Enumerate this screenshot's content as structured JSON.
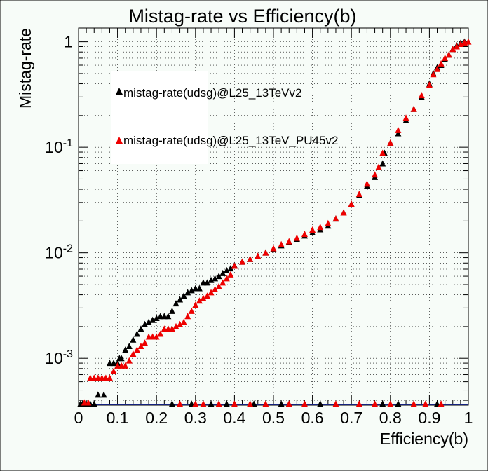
{
  "chart_data": {
    "type": "scatter",
    "title": "Mistag-rate vs Efficiency(b)",
    "xlabel": "Efficiency(b)",
    "ylabel": "Mistag-rate",
    "xlim": [
      0,
      1
    ],
    "ylim": [
      0.00036,
      1.35
    ],
    "yscale": "log",
    "grid": true,
    "legend_position": "top-left",
    "x_ticks": [
      "0",
      "0.1",
      "0.2",
      "0.3",
      "0.4",
      "0.5",
      "0.6",
      "0.7",
      "0.8",
      "0.9",
      "1"
    ],
    "y_ticks": [
      {
        "base": "10",
        "exp": "-3",
        "value": 0.001
      },
      {
        "base": "10",
        "exp": "-2",
        "value": 0.01
      },
      {
        "base": "10",
        "exp": "-1",
        "value": 0.1
      },
      {
        "base": "1",
        "exp": "",
        "value": 1
      }
    ],
    "series": [
      {
        "name": "mistag-rate(udsg)@L25_13TeVv2",
        "color": "#000000",
        "marker": "triangle",
        "points": [
          [
            0.005,
            0.00037
          ],
          [
            0.01,
            0.00037
          ],
          [
            0.02,
            0.00037
          ],
          [
            0.03,
            0.00037
          ],
          [
            0.04,
            0.00037
          ],
          [
            0.05,
            0.00045
          ],
          [
            0.065,
            0.00045
          ],
          [
            0.08,
            0.0009
          ],
          [
            0.09,
            0.0009
          ],
          [
            0.1,
            0.0009
          ],
          [
            0.105,
            0.001
          ],
          [
            0.11,
            0.001
          ],
          [
            0.12,
            0.0012
          ],
          [
            0.13,
            0.0013
          ],
          [
            0.14,
            0.0015
          ],
          [
            0.15,
            0.0017
          ],
          [
            0.16,
            0.0019
          ],
          [
            0.17,
            0.0021
          ],
          [
            0.18,
            0.0022
          ],
          [
            0.19,
            0.0023
          ],
          [
            0.2,
            0.0024
          ],
          [
            0.21,
            0.0025
          ],
          [
            0.22,
            0.0025
          ],
          [
            0.23,
            0.0025
          ],
          [
            0.24,
            0.0028
          ],
          [
            0.25,
            0.0033
          ],
          [
            0.26,
            0.0036
          ],
          [
            0.27,
            0.0039
          ],
          [
            0.28,
            0.0042
          ],
          [
            0.29,
            0.0044
          ],
          [
            0.3,
            0.0046
          ],
          [
            0.31,
            0.0046
          ],
          [
            0.32,
            0.0052
          ],
          [
            0.33,
            0.0052
          ],
          [
            0.34,
            0.0055
          ],
          [
            0.35,
            0.0057
          ],
          [
            0.36,
            0.006
          ],
          [
            0.37,
            0.0064
          ],
          [
            0.38,
            0.0068
          ],
          [
            0.39,
            0.0071
          ],
          [
            0.4,
            0.0076
          ],
          [
            0.42,
            0.0082
          ],
          [
            0.44,
            0.0087
          ],
          [
            0.46,
            0.0093
          ],
          [
            0.48,
            0.01
          ],
          [
            0.5,
            0.0108
          ],
          [
            0.52,
            0.0117
          ],
          [
            0.54,
            0.0126
          ],
          [
            0.56,
            0.0135
          ],
          [
            0.58,
            0.0145
          ],
          [
            0.6,
            0.0155
          ],
          [
            0.62,
            0.0166
          ],
          [
            0.64,
            0.018
          ],
          [
            0.66,
            0.021
          ],
          [
            0.68,
            0.024
          ],
          [
            0.7,
            0.029
          ],
          [
            0.72,
            0.035
          ],
          [
            0.74,
            0.043
          ],
          [
            0.76,
            0.052
          ],
          [
            0.78,
            0.07
          ],
          [
            0.785,
            0.088
          ],
          [
            0.8,
            0.11
          ],
          [
            0.82,
            0.135
          ],
          [
            0.84,
            0.18
          ],
          [
            0.86,
            0.23
          ],
          [
            0.88,
            0.3
          ],
          [
            0.9,
            0.4
          ],
          [
            0.91,
            0.5
          ],
          [
            0.92,
            0.57
          ],
          [
            0.93,
            0.6
          ],
          [
            0.94,
            0.68
          ],
          [
            0.95,
            0.75
          ],
          [
            0.96,
            0.85
          ],
          [
            0.97,
            0.92
          ],
          [
            0.98,
            0.97
          ],
          [
            0.99,
            1.0
          ],
          [
            0.24,
            0.00037
          ],
          [
            0.29,
            0.00037
          ],
          [
            0.34,
            0.00037
          ],
          [
            0.38,
            0.00037
          ],
          [
            0.45,
            0.00037
          ],
          [
            0.52,
            0.00037
          ],
          [
            0.54,
            0.00037
          ],
          [
            0.62,
            0.00037
          ],
          [
            0.78,
            0.00037
          ],
          [
            0.82,
            0.00037
          ],
          [
            0.92,
            0.00037
          ]
        ]
      },
      {
        "name": "mistag-rate(udsg)@L25_13TeV_PU45v2",
        "color": "#ee0000",
        "marker": "triangle",
        "points": [
          [
            0.015,
            0.00038
          ],
          [
            0.025,
            0.00038
          ],
          [
            0.03,
            0.00065
          ],
          [
            0.04,
            0.00065
          ],
          [
            0.05,
            0.00065
          ],
          [
            0.06,
            0.00065
          ],
          [
            0.07,
            0.00065
          ],
          [
            0.08,
            0.00065
          ],
          [
            0.09,
            0.00075
          ],
          [
            0.1,
            0.00085
          ],
          [
            0.11,
            0.00085
          ],
          [
            0.12,
            0.00085
          ],
          [
            0.13,
            0.00095
          ],
          [
            0.14,
            0.0011
          ],
          [
            0.15,
            0.0012
          ],
          [
            0.16,
            0.0013
          ],
          [
            0.17,
            0.0014
          ],
          [
            0.18,
            0.0016
          ],
          [
            0.19,
            0.0016
          ],
          [
            0.2,
            0.0016
          ],
          [
            0.21,
            0.0017
          ],
          [
            0.22,
            0.0019
          ],
          [
            0.23,
            0.0019
          ],
          [
            0.24,
            0.0019
          ],
          [
            0.25,
            0.002
          ],
          [
            0.26,
            0.0021
          ],
          [
            0.27,
            0.0022
          ],
          [
            0.28,
            0.0025
          ],
          [
            0.29,
            0.0028
          ],
          [
            0.3,
            0.0032
          ],
          [
            0.31,
            0.0035
          ],
          [
            0.32,
            0.0037
          ],
          [
            0.33,
            0.0039
          ],
          [
            0.34,
            0.0042
          ],
          [
            0.35,
            0.0045
          ],
          [
            0.36,
            0.0048
          ],
          [
            0.37,
            0.0052
          ],
          [
            0.38,
            0.0057
          ],
          [
            0.39,
            0.0062
          ],
          [
            0.4,
            0.0075
          ],
          [
            0.42,
            0.0082
          ],
          [
            0.44,
            0.0087
          ],
          [
            0.46,
            0.0093
          ],
          [
            0.48,
            0.01
          ],
          [
            0.5,
            0.011
          ],
          [
            0.52,
            0.012
          ],
          [
            0.54,
            0.0128
          ],
          [
            0.56,
            0.0138
          ],
          [
            0.58,
            0.015
          ],
          [
            0.6,
            0.0165
          ],
          [
            0.62,
            0.0175
          ],
          [
            0.64,
            0.019
          ],
          [
            0.66,
            0.021
          ],
          [
            0.68,
            0.024
          ],
          [
            0.7,
            0.029
          ],
          [
            0.72,
            0.036
          ],
          [
            0.74,
            0.045
          ],
          [
            0.76,
            0.055
          ],
          [
            0.77,
            0.065
          ],
          [
            0.78,
            0.088
          ],
          [
            0.8,
            0.11
          ],
          [
            0.82,
            0.145
          ],
          [
            0.84,
            0.19
          ],
          [
            0.86,
            0.23
          ],
          [
            0.88,
            0.31
          ],
          [
            0.9,
            0.39
          ],
          [
            0.91,
            0.49
          ],
          [
            0.92,
            0.55
          ],
          [
            0.93,
            0.62
          ],
          [
            0.94,
            0.7
          ],
          [
            0.95,
            0.75
          ],
          [
            0.96,
            0.85
          ],
          [
            0.97,
            0.9
          ],
          [
            0.98,
            0.95
          ],
          [
            0.99,
            0.98
          ],
          [
            1.0,
            1.0
          ],
          [
            0.26,
            0.00037
          ],
          [
            0.3,
            0.00037
          ],
          [
            0.32,
            0.00037
          ],
          [
            0.36,
            0.00037
          ],
          [
            0.4,
            0.00037
          ],
          [
            0.44,
            0.00037
          ],
          [
            0.48,
            0.00037
          ],
          [
            0.54,
            0.00037
          ],
          [
            0.58,
            0.00037
          ],
          [
            0.66,
            0.00037
          ],
          [
            0.72,
            0.00037
          ],
          [
            0.76,
            0.00037
          ],
          [
            0.8,
            0.00037
          ],
          [
            0.86,
            0.00037
          ],
          [
            0.89,
            0.00037
          ],
          [
            0.93,
            0.00037
          ]
        ]
      }
    ]
  }
}
